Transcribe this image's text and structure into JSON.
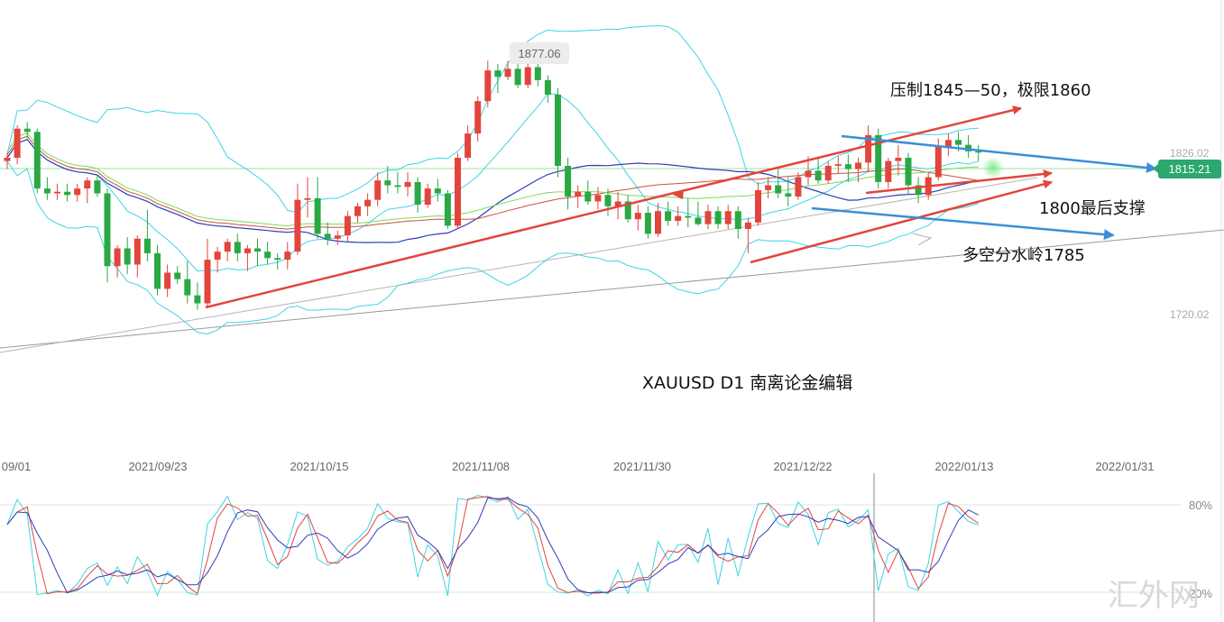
{
  "chart_title": "XAUUSD  D1  南离论金编辑",
  "watermark": "汇外网",
  "annotations": {
    "resistance": "压制1845—50，极限1860",
    "support": "1800最后支撑",
    "pivot": "多空分水岭1785"
  },
  "price_labels": {
    "high_callout": "1877.06",
    "current": "1815.21",
    "upper": "1826.02",
    "lower": "1720.02"
  },
  "oscillator_labels": {
    "upper": "80%",
    "lower": "20%"
  },
  "x_tick_labels": [
    "09/01",
    "2021/09/23",
    "2021/10/15",
    "2021/11/08",
    "2021/11/30",
    "2021/12/22",
    "2022/01/13",
    "2022/01/31"
  ],
  "colors": {
    "bull": "#e2453c",
    "bear": "#2aa844",
    "bollinger": "#3fd3e6",
    "ma_blue": "#2f3db8",
    "ma_red": "#c8523f",
    "ma_green": "#7ed957",
    "arrow_red": "#e2453c",
    "arrow_blue": "#3a8fd8",
    "current_badge": "#2aa870"
  },
  "chart_data": {
    "type": "candlestick",
    "symbol": "XAUUSD",
    "timeframe": "D1",
    "y_range_approx": [
      1690,
      1885
    ],
    "candles": [
      [
        1810.0,
        1815.0,
        1805.0,
        1812.0
      ],
      [
        1812.0,
        1832.0,
        1808.0,
        1830.0
      ],
      [
        1830.0,
        1834.0,
        1824.0,
        1828.0
      ],
      [
        1828.0,
        1830.0,
        1790.0,
        1793.0
      ],
      [
        1793.0,
        1800.0,
        1786.0,
        1790.0
      ],
      [
        1790.0,
        1796.0,
        1786.0,
        1791.0
      ],
      [
        1791.0,
        1796.0,
        1785.0,
        1789.0
      ],
      [
        1789.0,
        1796.0,
        1785.0,
        1793.0
      ],
      [
        1793.0,
        1800.0,
        1784.0,
        1798.0
      ],
      [
        1798.0,
        1801.0,
        1788.0,
        1790.0
      ],
      [
        1790.0,
        1793.0,
        1735.0,
        1745.0
      ],
      [
        1745.0,
        1758.0,
        1738.0,
        1756.0
      ],
      [
        1756.0,
        1763.0,
        1740.0,
        1746.0
      ],
      [
        1746.0,
        1764.0,
        1738.0,
        1762.0
      ],
      [
        1762.0,
        1780.0,
        1748.0,
        1753.0
      ],
      [
        1753.0,
        1758.0,
        1727.0,
        1731.0
      ],
      [
        1731.0,
        1746.0,
        1726.0,
        1741.0
      ],
      [
        1741.0,
        1745.0,
        1734.0,
        1737.0
      ],
      [
        1737.0,
        1748.0,
        1722.0,
        1727.0
      ],
      [
        1727.0,
        1735.0,
        1718.0,
        1722.0
      ],
      [
        1722.0,
        1762.0,
        1720.0,
        1749.0
      ],
      [
        1749.0,
        1757.0,
        1741.0,
        1754.0
      ],
      [
        1754.0,
        1762.0,
        1748.0,
        1760.0
      ],
      [
        1760.0,
        1765.0,
        1748.0,
        1753.0
      ],
      [
        1753.0,
        1758.0,
        1742.0,
        1756.0
      ],
      [
        1756.0,
        1762.0,
        1745.0,
        1754.0
      ],
      [
        1754.0,
        1760.0,
        1746.0,
        1750.0
      ],
      [
        1750.0,
        1753.0,
        1743.0,
        1749.0
      ],
      [
        1749.0,
        1760.0,
        1743.0,
        1754.0
      ],
      [
        1754.0,
        1796.0,
        1752.0,
        1786.0
      ],
      [
        1786.0,
        1800.0,
        1775.0,
        1787.0
      ],
      [
        1787.0,
        1800.0,
        1762.0,
        1765.0
      ],
      [
        1765.0,
        1772.0,
        1758.0,
        1762.0
      ],
      [
        1762.0,
        1767.0,
        1758.0,
        1764.0
      ],
      [
        1764.0,
        1779.0,
        1760.0,
        1776.0
      ],
      [
        1776.0,
        1784.0,
        1772.0,
        1782.0
      ],
      [
        1782.0,
        1790.0,
        1776.0,
        1786.0
      ],
      [
        1786.0,
        1803.0,
        1782.0,
        1798.0
      ],
      [
        1798.0,
        1807.0,
        1790.0,
        1795.0
      ],
      [
        1795.0,
        1803.0,
        1790.0,
        1794.0
      ],
      [
        1794.0,
        1803.0,
        1788.0,
        1797.0
      ],
      [
        1797.0,
        1800.0,
        1778.0,
        1783.0
      ],
      [
        1783.0,
        1796.0,
        1781.0,
        1793.0
      ],
      [
        1793.0,
        1799.0,
        1785.0,
        1790.0
      ],
      [
        1790.0,
        1792.0,
        1768.0,
        1770.0
      ],
      [
        1770.0,
        1815.0,
        1768.0,
        1812.0
      ],
      [
        1812.0,
        1832.0,
        1810.0,
        1827.0
      ],
      [
        1827.0,
        1850.0,
        1822.0,
        1847.0
      ],
      [
        1847.0,
        1872.0,
        1843.0,
        1866.0
      ],
      [
        1866.0,
        1870.0,
        1852.0,
        1862.0
      ],
      [
        1862.0,
        1872.0,
        1860.0,
        1867.0
      ],
      [
        1867.0,
        1873.0,
        1855.0,
        1857.0
      ],
      [
        1857.0,
        1877.0,
        1855.0,
        1868.0
      ],
      [
        1868.0,
        1872.0,
        1856.0,
        1860.0
      ],
      [
        1860.0,
        1863.0,
        1846.0,
        1851.0
      ],
      [
        1851.0,
        1855.0,
        1800.0,
        1807.0
      ],
      [
        1807.0,
        1812.0,
        1780.0,
        1788.0
      ],
      [
        1788.0,
        1795.0,
        1781.0,
        1791.0
      ],
      [
        1791.0,
        1798.0,
        1783.0,
        1785.0
      ],
      [
        1785.0,
        1794.0,
        1780.0,
        1789.0
      ],
      [
        1789.0,
        1793.0,
        1776.0,
        1782.0
      ],
      [
        1782.0,
        1791.0,
        1774.0,
        1785.0
      ],
      [
        1785.0,
        1789.0,
        1772.0,
        1774.0
      ],
      [
        1774.0,
        1783.0,
        1767.0,
        1778.0
      ],
      [
        1778.0,
        1782.0,
        1762.0,
        1765.0
      ],
      [
        1765.0,
        1784.0,
        1763.0,
        1779.0
      ],
      [
        1779.0,
        1785.0,
        1770.0,
        1773.0
      ],
      [
        1773.0,
        1782.0,
        1770.0,
        1776.0
      ],
      [
        1776.0,
        1787.0,
        1769.0,
        1775.0
      ],
      [
        1775.0,
        1785.0,
        1770.0,
        1771.0
      ],
      [
        1771.0,
        1783.0,
        1768.0,
        1779.0
      ],
      [
        1779.0,
        1782.0,
        1768.0,
        1771.0
      ],
      [
        1771.0,
        1783.0,
        1768.0,
        1779.0
      ],
      [
        1779.0,
        1782.0,
        1762.0,
        1768.0
      ],
      [
        1768.0,
        1775.0,
        1753.0,
        1772.0
      ],
      [
        1772.0,
        1797.0,
        1770.0,
        1792.0
      ],
      [
        1792.0,
        1800.0,
        1787.0,
        1795.0
      ],
      [
        1795.0,
        1805.0,
        1787.0,
        1790.0
      ],
      [
        1790.0,
        1800.0,
        1782.0,
        1788.0
      ],
      [
        1788.0,
        1803.0,
        1786.0,
        1800.0
      ],
      [
        1800.0,
        1813.0,
        1795.0,
        1804.0
      ],
      [
        1804.0,
        1812.0,
        1796.0,
        1798.0
      ],
      [
        1798.0,
        1810.0,
        1796.0,
        1807.0
      ],
      [
        1807.0,
        1813.0,
        1802.0,
        1808.0
      ],
      [
        1808.0,
        1814.0,
        1797.0,
        1805.0
      ],
      [
        1805.0,
        1812.0,
        1797.0,
        1809.0
      ],
      [
        1809.0,
        1832.0,
        1803.0,
        1826.0
      ],
      [
        1826.0,
        1830.0,
        1793.0,
        1797.0
      ],
      [
        1797.0,
        1812.0,
        1793.0,
        1810.0
      ],
      [
        1810.0,
        1820.0,
        1801.0,
        1812.0
      ],
      [
        1812.0,
        1815.0,
        1789.0,
        1795.0
      ],
      [
        1795.0,
        1800.0,
        1784.0,
        1789.0
      ],
      [
        1789.0,
        1803.0,
        1786.0,
        1800.0
      ],
      [
        1800.0,
        1824.0,
        1798.0,
        1819.0
      ],
      [
        1819.0,
        1827.0,
        1813.0,
        1823.0
      ],
      [
        1823.0,
        1828.0,
        1816.0,
        1820.0
      ],
      [
        1820.0,
        1826.0,
        1812.0,
        1816.0
      ],
      [
        1816.0,
        1820.0,
        1810.0,
        1815.21
      ]
    ]
  }
}
